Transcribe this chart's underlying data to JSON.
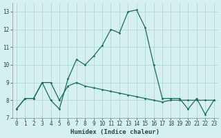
{
  "xlabel": "Humidex (Indice chaleur)",
  "x_values": [
    0,
    1,
    2,
    3,
    4,
    5,
    6,
    7,
    8,
    9,
    10,
    11,
    12,
    13,
    14,
    15,
    16,
    17,
    18,
    19,
    20,
    21,
    22,
    23
  ],
  "line1_y": [
    7.5,
    8.1,
    8.1,
    9.0,
    9.0,
    8.0,
    8.8,
    9.0,
    8.8,
    8.7,
    8.6,
    8.5,
    8.4,
    8.3,
    8.2,
    8.1,
    8.0,
    7.9,
    8.0,
    8.0,
    8.0,
    8.0,
    8.0,
    8.0
  ],
  "line2_y": [
    7.5,
    8.1,
    8.1,
    9.0,
    8.0,
    7.5,
    9.2,
    10.3,
    10.0,
    10.5,
    11.1,
    12.0,
    11.8,
    13.0,
    13.1,
    12.1,
    10.0,
    8.1,
    8.1,
    8.1,
    7.5,
    8.1,
    7.2,
    8.0
  ],
  "bg_color": "#d6f0f0",
  "grid_color": "#b0d8d8",
  "line_color": "#1a6b5a",
  "ylim": [
    7,
    13.5
  ],
  "xlim": [
    -0.5,
    23.5
  ],
  "yticks": [
    7,
    8,
    9,
    10,
    11,
    12,
    13
  ],
  "xticks": [
    0,
    1,
    2,
    3,
    4,
    5,
    6,
    7,
    8,
    9,
    10,
    11,
    12,
    13,
    14,
    15,
    16,
    17,
    18,
    19,
    20,
    21,
    22,
    23
  ],
  "xlabel_fontsize": 6.5,
  "tick_fontsize": 5.5,
  "line_width": 0.9,
  "marker_size": 2.0
}
